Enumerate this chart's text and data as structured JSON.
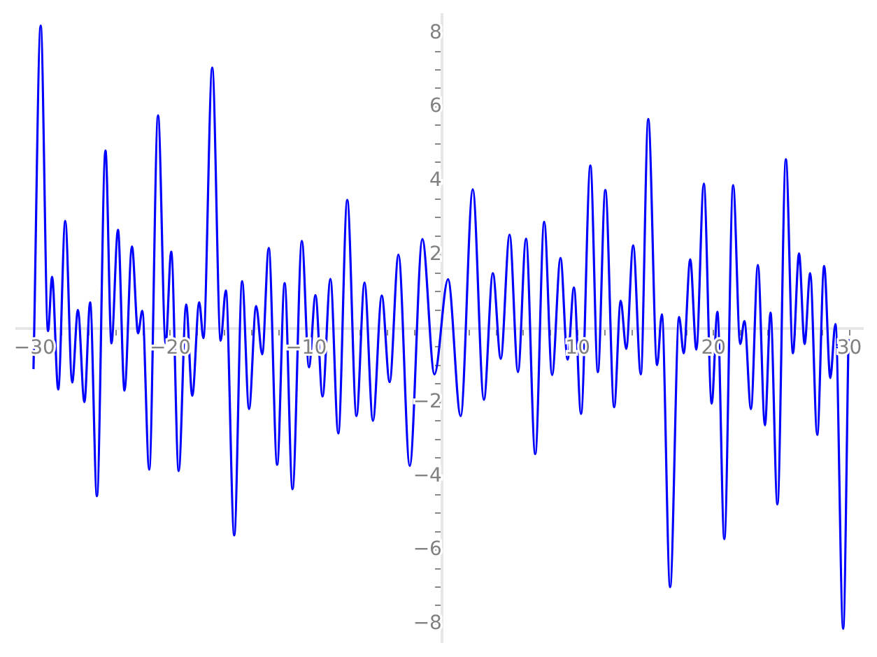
{
  "chart_data": {
    "type": "line",
    "x": [
      -30.07,
      -29.54,
      -29.0,
      -28.7,
      -28.25,
      -27.73,
      -27.22,
      -26.8,
      -26.32,
      -25.9,
      -25.4,
      -24.77,
      -24.33,
      -23.85,
      -23.37,
      -22.82,
      -22.37,
      -22.06,
      -21.55,
      -20.9,
      -20.34,
      -19.93,
      -19.38,
      -18.83,
      -18.38,
      -17.87,
      -17.56,
      -16.91,
      -16.29,
      -15.91,
      -15.29,
      -14.71,
      -14.2,
      -13.68,
      -13.23,
      -12.75,
      -12.13,
      -11.58,
      -11.0,
      -10.31,
      -9.79,
      -9.31,
      -8.79,
      -8.21,
      -7.63,
      -6.97,
      -6.29,
      -5.7,
      -5.08,
      -4.43,
      -3.85,
      -3.2,
      -2.37,
      -1.44,
      -0.55,
      0.45,
      1.38,
      2.27,
      3.09,
      3.75,
      4.33,
      4.98,
      5.6,
      6.19,
      6.87,
      7.53,
      8.11,
      8.73,
      9.25,
      9.72,
      10.24,
      10.93,
      11.48,
      12.03,
      12.68,
      13.16,
      13.57,
      14.08,
      14.64,
      15.19,
      15.84,
      16.19,
      16.8,
      17.46,
      17.8,
      18.28,
      18.73,
      19.28,
      19.86,
      20.28,
      20.79,
      21.44,
      21.96,
      22.27,
      22.75,
      23.26,
      23.78,
      24.19,
      24.7,
      25.32,
      25.84,
      26.29,
      26.7,
      27.11,
      27.63,
      28.14,
      28.59,
      28.97,
      29.54,
      29.93
    ],
    "series": [
      {
        "color": "#0000ff",
        "values": [
          -1.1,
          8.2,
          -0.07,
          1.4,
          -1.65,
          2.91,
          -1.46,
          0.5,
          -1.99,
          0.71,
          -4.54,
          4.82,
          -0.4,
          2.67,
          -1.68,
          2.22,
          -0.13,
          0.48,
          -3.82,
          5.77,
          -0.4,
          2.08,
          -3.86,
          0.65,
          -1.82,
          0.71,
          -0.26,
          7.06,
          -0.33,
          1.03,
          -5.6,
          1.28,
          -2.18,
          0.61,
          -0.7,
          2.18,
          -3.69,
          1.23,
          -4.35,
          2.37,
          -1.05,
          0.9,
          -1.84,
          1.34,
          -2.84,
          3.48,
          -2.37,
          1.24,
          -2.5,
          0.89,
          -1.45,
          2.0,
          -3.72,
          2.42,
          -1.24,
          1.33,
          -2.37,
          3.77,
          -1.93,
          1.5,
          -0.82,
          2.54,
          -1.18,
          2.43,
          -3.4,
          2.89,
          -1.26,
          1.91,
          -0.84,
          1.11,
          -2.31,
          4.41,
          -1.18,
          3.75,
          -2.13,
          0.75,
          -0.55,
          2.25,
          -1.24,
          5.67,
          -0.99,
          0.38,
          -7.0,
          0.31,
          -0.67,
          1.87,
          -0.57,
          3.92,
          -2.03,
          0.45,
          -5.7,
          3.88,
          -0.42,
          0.2,
          -2.18,
          1.72,
          -2.62,
          0.43,
          -4.76,
          4.58,
          -0.67,
          2.03,
          -0.42,
          1.5,
          -2.88,
          1.69,
          -1.34,
          0.12,
          -8.13,
          -0.29
        ]
      }
    ],
    "xlim": [
      -31.3,
      31
    ],
    "ylim": [
      -8.5,
      8.5
    ],
    "xticks": [
      -30,
      {
        "value": -28,
        "label": null
      },
      {
        "value": -26,
        "label": null
      },
      {
        "value": -24,
        "label": null
      },
      {
        "value": -22,
        "label": null
      },
      -20,
      {
        "value": -18,
        "label": null
      },
      {
        "value": -16,
        "label": null
      },
      {
        "value": -14,
        "label": null
      },
      {
        "value": -12,
        "label": null
      },
      -10,
      {
        "value": -8,
        "label": null
      },
      {
        "value": -6,
        "label": null
      },
      {
        "value": -4,
        "label": null
      },
      {
        "value": -2,
        "label": null
      },
      {
        "value": 2,
        "label": null
      },
      {
        "value": 4,
        "label": null
      },
      {
        "value": 6,
        "label": null
      },
      {
        "value": 8,
        "label": null
      },
      10,
      {
        "value": 12,
        "label": null
      },
      {
        "value": 14,
        "label": null
      },
      {
        "value": 16,
        "label": null
      },
      {
        "value": 18,
        "label": null
      },
      20,
      {
        "value": 22,
        "label": null
      },
      {
        "value": 24,
        "label": null
      },
      {
        "value": 26,
        "label": null
      },
      {
        "value": 28,
        "label": null
      },
      30
    ],
    "yticks": [
      -8,
      {
        "value": -7.5,
        "label": null
      },
      {
        "value": -7,
        "label": null
      },
      {
        "value": -6.5,
        "label": null
      },
      -6,
      {
        "value": -5.5,
        "label": null
      },
      {
        "value": -5,
        "label": null
      },
      {
        "value": -4.5,
        "label": null
      },
      -4,
      {
        "value": -3.5,
        "label": null
      },
      {
        "value": -3,
        "label": null
      },
      {
        "value": -2.5,
        "label": null
      },
      -2,
      {
        "value": -1.5,
        "label": null
      },
      {
        "value": -1,
        "label": null
      },
      {
        "value": -0.5,
        "label": null
      },
      {
        "value": 0.5,
        "label": null
      },
      {
        "value": 1,
        "label": null
      },
      {
        "value": 1.5,
        "label": null
      },
      2,
      {
        "value": 2.5,
        "label": null
      },
      {
        "value": 3,
        "label": null
      },
      {
        "value": 3.5,
        "label": null
      },
      4,
      {
        "value": 4.5,
        "label": null
      },
      {
        "value": 5,
        "label": null
      },
      {
        "value": 5.5,
        "label": null
      },
      6,
      {
        "value": 6.5,
        "label": null
      },
      {
        "value": 7,
        "label": null
      },
      {
        "value": 7.5,
        "label": null
      },
      8
    ]
  }
}
